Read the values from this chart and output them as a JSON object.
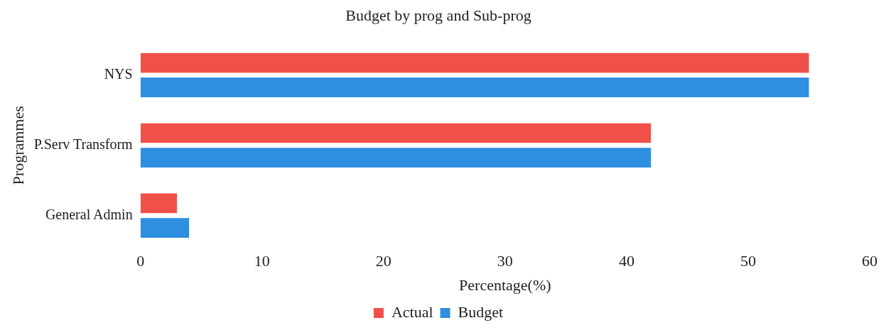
{
  "chart_data": {
    "type": "bar",
    "orientation": "horizontal",
    "title": "Budget by prog and Sub-prog",
    "xlabel": "Percentage(%)",
    "ylabel": "Programmes",
    "categories": [
      "NYS",
      "P.Serv Transform",
      "General Admin"
    ],
    "series": [
      {
        "name": "Actual",
        "color": "#f0504a",
        "values": [
          55,
          42,
          3
        ]
      },
      {
        "name": "Budget",
        "color": "#2e8ee0",
        "values": [
          55,
          42,
          4
        ]
      }
    ],
    "xlim": [
      0,
      60
    ],
    "xticks": [
      0,
      10,
      20,
      30,
      40,
      50,
      60
    ],
    "grid": false,
    "legend": "bottom"
  }
}
